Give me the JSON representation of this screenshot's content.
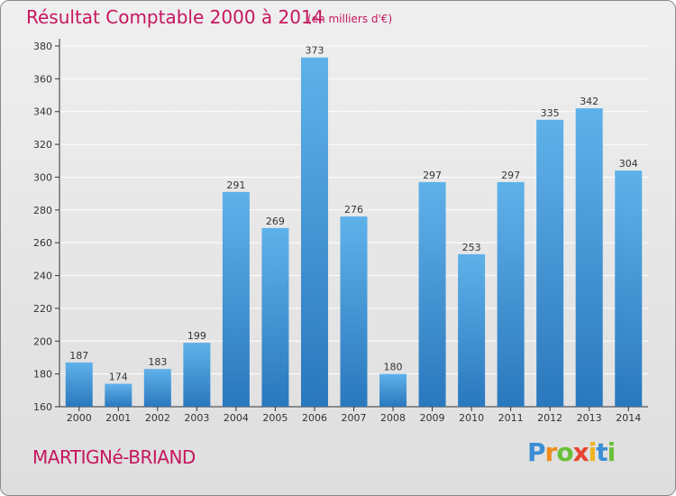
{
  "header": {
    "title": "Résultat Comptable 2000 à 2014",
    "subtitle": "(en milliers d'€)"
  },
  "footer": {
    "commune": "MARTIGNé-BRIAND",
    "logo": {
      "text": "Proxiti",
      "letters": [
        {
          "ch": "P",
          "color": "#3a8fd6"
        },
        {
          "ch": "r",
          "color": "#f08a1c"
        },
        {
          "ch": "o",
          "color": "#6abf3a"
        },
        {
          "ch": "x",
          "color": "#e8432e"
        },
        {
          "ch": "i",
          "color": "#f0b41c"
        },
        {
          "ch": "t",
          "color": "#3a8fd6"
        },
        {
          "ch": "i",
          "color": "#6abf3a"
        }
      ]
    }
  },
  "chart_data": {
    "type": "bar",
    "categories": [
      "2000",
      "2001",
      "2002",
      "2003",
      "2004",
      "2005",
      "2006",
      "2007",
      "2008",
      "2009",
      "2010",
      "2011",
      "2012",
      "2013",
      "2014"
    ],
    "values": [
      187,
      174,
      183,
      199,
      291,
      269,
      373,
      276,
      180,
      297,
      253,
      297,
      335,
      342,
      304
    ],
    "title": "Résultat Comptable 2000 à 2014",
    "subtitle": "(en milliers d'€)",
    "xlabel": "",
    "ylabel": "",
    "ylim": [
      160,
      380
    ],
    "yticks": [
      160,
      180,
      200,
      220,
      240,
      260,
      280,
      300,
      320,
      340,
      360,
      380
    ],
    "grid": true,
    "bar_color": "#3f95d8",
    "bar_color_light": "#5fb1ea",
    "bar_color_dark": "#2a78bd"
  }
}
